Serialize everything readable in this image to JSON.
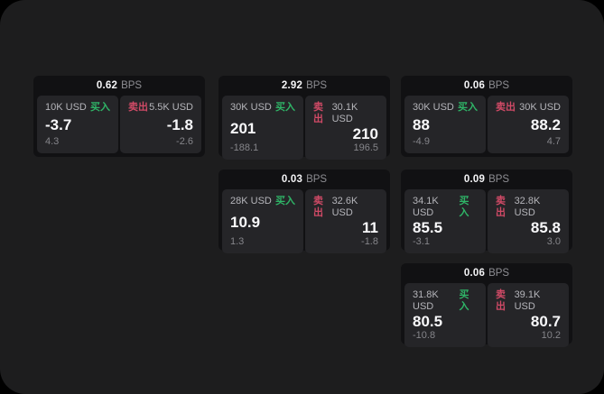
{
  "colors": {
    "page_bg": "#000000",
    "window_bg": "#1d1d1e",
    "card_bg": "#111113",
    "panel_bg": "#252528",
    "text_primary": "#f9f9fb",
    "text_secondary": "#b5b5ba",
    "text_muted": "#85858a",
    "buy_green": "#2fb567",
    "sell_red": "#d04a66"
  },
  "labels": {
    "bps_unit": "BPS",
    "buy": "买入",
    "sell": "卖出"
  },
  "cards": [
    {
      "bps": "0.62",
      "buy": {
        "size": "10K USD",
        "value": "-3.7",
        "sub": "4.3"
      },
      "sell": {
        "size": "5.5K USD",
        "value": "-1.8",
        "sub": "-2.6"
      }
    },
    {
      "bps": "2.92",
      "buy": {
        "size": "30K USD",
        "value": "201",
        "sub": "-188.1"
      },
      "sell": {
        "size": "30.1K USD",
        "value": "210",
        "sub": "196.5"
      }
    },
    {
      "bps": "0.06",
      "buy": {
        "size": "30K USD",
        "value": "88",
        "sub": "-4.9"
      },
      "sell": {
        "size": "30K USD",
        "value": "88.2",
        "sub": "4.7"
      }
    },
    {
      "bps": "0.03",
      "buy": {
        "size": "28K USD",
        "value": "10.9",
        "sub": "1.3"
      },
      "sell": {
        "size": "32.6K USD",
        "value": "11",
        "sub": "-1.8"
      }
    },
    {
      "bps": "0.09",
      "buy": {
        "size": "34.1K USD",
        "value": "85.5",
        "sub": "-3.1"
      },
      "sell": {
        "size": "32.8K USD",
        "value": "85.8",
        "sub": "3.0"
      }
    },
    {
      "bps": "0.06",
      "buy": {
        "size": "31.8K USD",
        "value": "80.5",
        "sub": "-10.8"
      },
      "sell": {
        "size": "39.1K USD",
        "value": "80.7",
        "sub": "10.2"
      }
    }
  ]
}
